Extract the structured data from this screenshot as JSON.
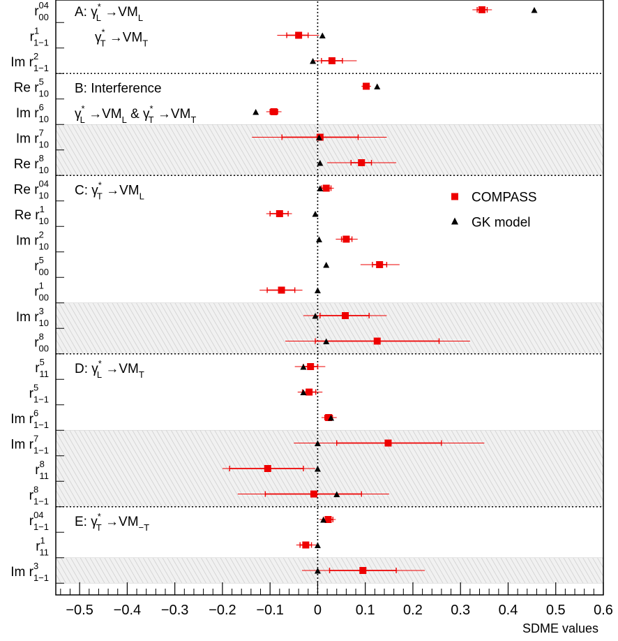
{
  "chart_data": {
    "type": "scatter",
    "orientation": "horizontal",
    "xlabel": "SDME values",
    "xlim": [
      -0.55,
      0.6
    ],
    "x_ticks": [
      -0.5,
      -0.4,
      -0.3,
      -0.2,
      -0.1,
      0,
      0.1,
      0.2,
      0.3,
      0.4,
      0.5,
      0.6
    ],
    "x_tick_labels": [
      "−0.5",
      "−0.4",
      "−0.3",
      "−0.2",
      "−0.1",
      "0",
      "0.1",
      "0.2",
      "0.3",
      "0.4",
      "0.5",
      "0.6"
    ],
    "reference_line_x": 0,
    "legend": {
      "position": "right, inside section C",
      "items": [
        {
          "name": "COMPASS",
          "marker": "square",
          "color": "#ee0000"
        },
        {
          "name": "GK model",
          "marker": "triangle",
          "color": "#000000"
        }
      ]
    },
    "colors": {
      "compass": "#ee0000",
      "gk": "#000000",
      "shading": "#bdbdbd"
    },
    "sections": [
      {
        "id": "A",
        "text": "A: γ*L →VML",
        "sub": "γ*T →VMT"
      },
      {
        "id": "B",
        "text": "B: Interference",
        "sub": "γ*L →VML & γ*T →VMT"
      },
      {
        "id": "C",
        "text": "C: γ*T →VML"
      },
      {
        "id": "D",
        "text": "D: γ*L →VMT"
      },
      {
        "id": "E",
        "text": "E: γ*T →VM−T"
      }
    ],
    "rows": [
      {
        "label": "r00^04",
        "section": "A",
        "shaded": false,
        "compass": 0.345,
        "stat": [
          0.335,
          0.356
        ],
        "total": [
          0.325,
          0.366
        ],
        "gk": 0.455
      },
      {
        "label": "r1−1^1",
        "section": "A",
        "shaded": false,
        "compass": -0.04,
        "stat": [
          -0.065,
          -0.02
        ],
        "total": [
          -0.085,
          0.003
        ],
        "gk": 0.01
      },
      {
        "label": "Im r1−1^2",
        "section": "A",
        "shaded": false,
        "compass": 0.03,
        "stat": [
          0.008,
          0.052
        ],
        "total": [
          -0.012,
          0.082
        ],
        "gk": -0.01
      },
      {
        "label": "Re r10^5",
        "section": "B",
        "shaded": false,
        "compass": 0.102,
        "stat": [
          0.096,
          0.108
        ],
        "total": [
          0.092,
          0.112
        ],
        "gk": 0.125
      },
      {
        "label": "Im r10^6",
        "section": "B",
        "shaded": false,
        "compass": -0.092,
        "stat": [
          -0.1,
          -0.084
        ],
        "total": [
          -0.108,
          -0.076
        ],
        "gk": -0.13
      },
      {
        "label": "Im r10^7",
        "section": "B",
        "shaded": true,
        "compass": 0.005,
        "stat": [
          -0.075,
          0.085
        ],
        "total": [
          -0.138,
          0.145
        ],
        "gk": 0.003
      },
      {
        "label": "Re r10^8",
        "section": "B",
        "shaded": true,
        "compass": 0.092,
        "stat": [
          0.07,
          0.113
        ],
        "total": [
          0.02,
          0.165
        ],
        "gk": 0.005
      },
      {
        "label": "Re r10^04",
        "section": "C",
        "shaded": false,
        "compass": 0.018,
        "stat": [
          0.008,
          0.028
        ],
        "total": [
          0.002,
          0.034
        ],
        "gk": 0.005
      },
      {
        "label": "Re r10^1",
        "section": "C",
        "shaded": false,
        "compass": -0.08,
        "stat": [
          -0.1,
          -0.062
        ],
        "total": [
          -0.108,
          -0.054
        ],
        "gk": -0.005
      },
      {
        "label": "Im r10^2",
        "section": "C",
        "shaded": false,
        "compass": 0.06,
        "stat": [
          0.05,
          0.072
        ],
        "total": [
          0.038,
          0.084
        ],
        "gk": 0.003
      },
      {
        "label": "r00^5",
        "section": "C",
        "shaded": false,
        "compass": 0.13,
        "stat": [
          0.115,
          0.145
        ],
        "total": [
          0.09,
          0.172
        ],
        "gk": 0.018
      },
      {
        "label": "r00^1",
        "section": "C",
        "shaded": false,
        "compass": -0.076,
        "stat": [
          -0.106,
          -0.048
        ],
        "total": [
          -0.122,
          -0.032
        ],
        "gk": 0.0
      },
      {
        "label": "Im r10^3",
        "section": "C",
        "shaded": true,
        "compass": 0.058,
        "stat": [
          0.005,
          0.108
        ],
        "total": [
          -0.03,
          0.145
        ],
        "gk": -0.005
      },
      {
        "label": "r00^8",
        "section": "C",
        "shaded": true,
        "compass": 0.125,
        "stat": [
          -0.005,
          0.255
        ],
        "total": [
          -0.068,
          0.32
        ],
        "gk": 0.018
      },
      {
        "label": "r11^5",
        "section": "D",
        "shaded": false,
        "compass": -0.015,
        "stat": [
          -0.03,
          0.0
        ],
        "total": [
          -0.048,
          0.016
        ],
        "gk": -0.03
      },
      {
        "label": "r1−1^5",
        "section": "D",
        "shaded": false,
        "compass": -0.018,
        "stat": [
          -0.032,
          -0.004
        ],
        "total": [
          -0.042,
          0.01
        ],
        "gk": -0.03
      },
      {
        "label": "Im r1−1^6",
        "section": "D",
        "shaded": false,
        "compass": 0.023,
        "stat": [
          0.015,
          0.031
        ],
        "total": [
          0.008,
          0.04
        ],
        "gk": 0.028
      },
      {
        "label": "Im r1−1^7",
        "section": "D",
        "shaded": true,
        "compass": 0.148,
        "stat": [
          0.04,
          0.26
        ],
        "total": [
          -0.05,
          0.35
        ],
        "gk": 0.0
      },
      {
        "label": "r11^8",
        "section": "D",
        "shaded": true,
        "compass": -0.105,
        "stat": [
          -0.185,
          -0.03
        ],
        "total": [
          -0.2,
          -0.005
        ],
        "gk": 0.0
      },
      {
        "label": "r1−1^8",
        "section": "D",
        "shaded": true,
        "compass": -0.008,
        "stat": [
          -0.11,
          0.092
        ],
        "total": [
          -0.168,
          0.15
        ],
        "gk": 0.04
      },
      {
        "label": "r1−1^04",
        "section": "E",
        "shaded": false,
        "compass": 0.022,
        "stat": [
          0.012,
          0.032
        ],
        "total": [
          0.004,
          0.038
        ],
        "gk": 0.012
      },
      {
        "label": "r11^1",
        "section": "E",
        "shaded": false,
        "compass": -0.025,
        "stat": [
          -0.037,
          -0.013
        ],
        "total": [
          -0.045,
          -0.003
        ],
        "gk": 0.0
      },
      {
        "label": "Im r1−1^3",
        "section": "E",
        "shaded": true,
        "compass": 0.095,
        "stat": [
          0.025,
          0.165
        ],
        "total": [
          -0.033,
          0.225
        ],
        "gk": 0.0
      }
    ]
  }
}
